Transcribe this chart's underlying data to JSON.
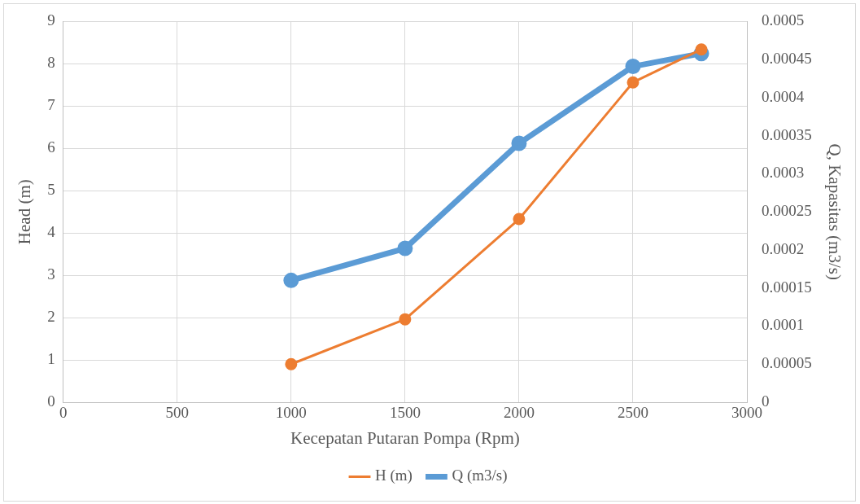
{
  "chart_data": {
    "type": "line",
    "xlabel": "Kecepatan Putaran Pompa (Rpm)",
    "ylabel": "Head (m)",
    "y2label": "Q, Kapasitas (m3/s)",
    "series": [
      {
        "name": "H (m)",
        "color": "#ed7d31",
        "x": [
          1000,
          1500,
          2000,
          2500,
          2800
        ],
        "values": [
          0.9,
          1.96,
          4.33,
          7.56,
          8.34
        ]
      },
      {
        "name": "Q (m3/s)",
        "color": "#5b9bd5",
        "axis": "y2",
        "x": [
          1000,
          1500,
          2000,
          2500,
          2800
        ],
        "values": [
          0.00016,
          0.000202,
          0.00034,
          0.000441,
          0.000458
        ]
      }
    ],
    "xlim": [
      0,
      3000
    ],
    "xticks": [
      0,
      500,
      1000,
      1500,
      2000,
      2500,
      3000
    ],
    "ylim": [
      0,
      9
    ],
    "yticks": [
      0,
      1,
      2,
      3,
      4,
      5,
      6,
      7,
      8,
      9
    ],
    "y2lim": [
      0,
      0.0005
    ],
    "y2ticks": [
      0,
      {
        "value": 5e-05,
        "label": "0.00005"
      },
      0.0001,
      0.00015,
      0.0002,
      0.00025,
      0.0003,
      0.00035,
      0.0004,
      0.00045,
      0.0005
    ],
    "grid": true,
    "legend": "bottom",
    "marker": "circle",
    "line_style": "solid"
  }
}
